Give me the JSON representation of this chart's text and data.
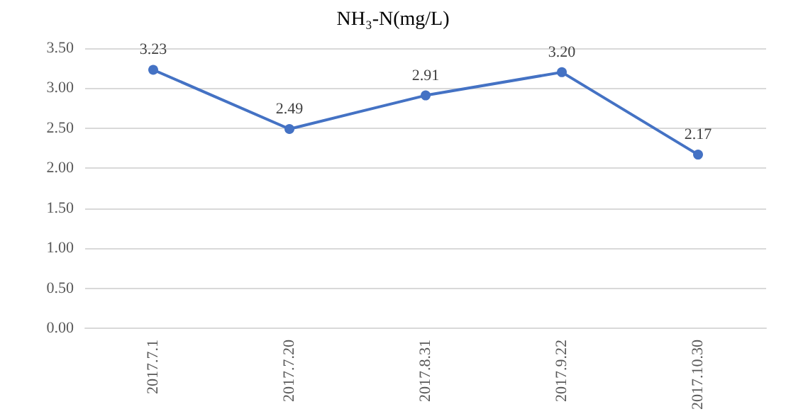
{
  "chart_data": {
    "type": "line",
    "title": "NH₃-N(mg/L)",
    "categories": [
      "2017.7.1",
      "2017.7.20",
      "2017.8.31",
      "2017.9.22",
      "2017.10.30"
    ],
    "series": [
      {
        "color": "#4472c4",
        "values": [
          3.23,
          2.49,
          2.91,
          3.2,
          2.17
        ]
      }
    ],
    "ylim": [
      0,
      3.5
    ],
    "yticks": [
      {
        "value": 0,
        "label": "0.00"
      },
      {
        "value": 0.5,
        "label": "0.50"
      },
      {
        "value": 1,
        "label": "1.00"
      },
      {
        "value": 1.5,
        "label": "1.50"
      },
      {
        "value": 2,
        "label": "2.00"
      },
      {
        "value": 2.5,
        "label": "2.50"
      },
      {
        "value": 3,
        "label": "3.00"
      },
      {
        "value": 3.5,
        "label": "3.50"
      }
    ],
    "value_labels": [
      "3.23",
      "2.49",
      "2.91",
      "3.20",
      "2.17"
    ],
    "grid": "y",
    "marker": "circle",
    "line_style": "solid"
  }
}
